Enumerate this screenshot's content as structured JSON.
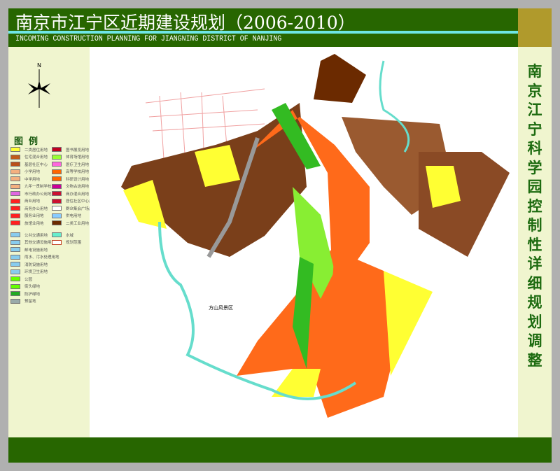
{
  "header": {
    "title": "南京市江宁区近期建设规划（2006-2010）",
    "subtitle": "INCOMING CONSTRUCTION PLANNING FOR JIANGNING DISTRICT OF NANJING"
  },
  "side_title": [
    "南",
    "京",
    "江",
    "宁",
    "科",
    "学",
    "园",
    "控",
    "制",
    "性",
    "详",
    "细",
    "规",
    "划",
    "调",
    "整"
  ],
  "compass": {
    "label": "N"
  },
  "legend": {
    "title": "图例",
    "col1": [
      {
        "label": "二类居住用地",
        "color": "#ffff33"
      },
      {
        "label": "住宅混合用地",
        "color": "#c05a1a"
      },
      {
        "label": "基层社区中心",
        "color": "#b8501a"
      },
      {
        "label": "小学用地",
        "color": "#f4b07f"
      },
      {
        "label": "中学用地",
        "color": "#f4b07f"
      },
      {
        "label": "九年一贯制学校用地",
        "color": "#f4b07f"
      },
      {
        "label": "市行政办公用地",
        "color": "#e066e0"
      },
      {
        "label": "商业用地",
        "color": "#ff2020"
      },
      {
        "label": "商务办公用地",
        "color": "#ff2020"
      },
      {
        "label": "服务业用地",
        "color": "#ff2020"
      },
      {
        "label": "旅馆业用地",
        "color": "#ff2020"
      }
    ],
    "col2": [
      {
        "label": "图书展览用地",
        "color": "#c00020"
      },
      {
        "label": "体育场馆用地",
        "color": "#99ff33"
      },
      {
        "label": "医疗卫生用地",
        "color": "#ff66dd"
      },
      {
        "label": "高等学校用地",
        "color": "#ff6600"
      },
      {
        "label": "科研设计用地",
        "color": "#ff6600"
      },
      {
        "label": "文物古迹用地",
        "color": "#cc0099"
      },
      {
        "label": "商办混合用地",
        "color": "#cc1030"
      },
      {
        "label": "居住社区中心用地",
        "color": "#cc1030"
      },
      {
        "label": "群众集会广场用地",
        "color": "#ffffff"
      },
      {
        "label": "供电用地",
        "color": "#88ccff"
      },
      {
        "label": "二类工业用地",
        "color": "#6b2a00"
      }
    ],
    "col3": [
      {
        "label": "公共交通用地",
        "color": "#88ccee"
      },
      {
        "label": "其他交通设施用地",
        "color": "#88ccee"
      },
      {
        "label": "邮电设施用地",
        "color": "#88ccee"
      },
      {
        "label": "雨水、污水处理用地",
        "color": "#88ccee"
      },
      {
        "label": "消防设施用地",
        "color": "#88ccee"
      },
      {
        "label": "环境卫生用地",
        "color": "#88ccee"
      },
      {
        "label": "公园",
        "color": "#66ff00"
      },
      {
        "label": "街头绿地",
        "color": "#66ff00"
      },
      {
        "label": "防护绿地",
        "color": "#22aa22"
      },
      {
        "label": "预留地",
        "color": "#99aaaa"
      }
    ],
    "col4": [
      {
        "label": "水域",
        "color": "#66eecc"
      },
      {
        "label": "规划范围",
        "color": "#ffffff"
      }
    ]
  },
  "map": {
    "area_label": "方山风景区"
  }
}
